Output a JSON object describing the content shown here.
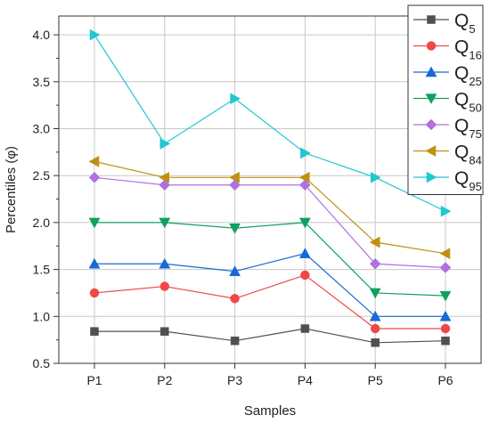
{
  "chart_data": {
    "type": "line",
    "xlabel": "Samples",
    "ylabel": "Percentiles (φ)",
    "categories": [
      "P1",
      "P2",
      "P3",
      "P4",
      "P5",
      "P6"
    ],
    "ylim": [
      0.5,
      4.2
    ],
    "yticks": [
      "0.5",
      "1.0",
      "1.5",
      "2.0",
      "2.5",
      "3.0",
      "3.5",
      "4.0"
    ],
    "grid": true,
    "legend_position": "top-right",
    "series": [
      {
        "name": "Q",
        "subscript": "5",
        "color": "#505050",
        "marker": "square",
        "values": [
          0.84,
          0.84,
          0.74,
          0.87,
          0.72,
          0.74
        ]
      },
      {
        "name": "Q",
        "subscript": "16",
        "color": "#f04848",
        "marker": "circle",
        "values": [
          1.25,
          1.32,
          1.19,
          1.44,
          0.87,
          0.87
        ]
      },
      {
        "name": "Q",
        "subscript": "25",
        "color": "#1868d8",
        "marker": "triangle-up",
        "values": [
          1.56,
          1.56,
          1.48,
          1.67,
          1.0,
          1.0
        ]
      },
      {
        "name": "Q",
        "subscript": "50",
        "color": "#10a060",
        "marker": "triangle-down",
        "values": [
          2.0,
          2.0,
          1.94,
          2.0,
          1.25,
          1.22
        ]
      },
      {
        "name": "Q",
        "subscript": "75",
        "color": "#b070e0",
        "marker": "diamond",
        "values": [
          2.48,
          2.4,
          2.4,
          2.4,
          1.56,
          1.52
        ]
      },
      {
        "name": "Q",
        "subscript": "84",
        "color": "#c09010",
        "marker": "triangle-left",
        "values": [
          2.65,
          2.48,
          2.48,
          2.48,
          1.79,
          1.67
        ]
      },
      {
        "name": "Q",
        "subscript": "95",
        "color": "#20c8d0",
        "marker": "triangle-right",
        "values": [
          4.0,
          2.84,
          3.32,
          2.74,
          2.48,
          2.12
        ]
      }
    ]
  }
}
